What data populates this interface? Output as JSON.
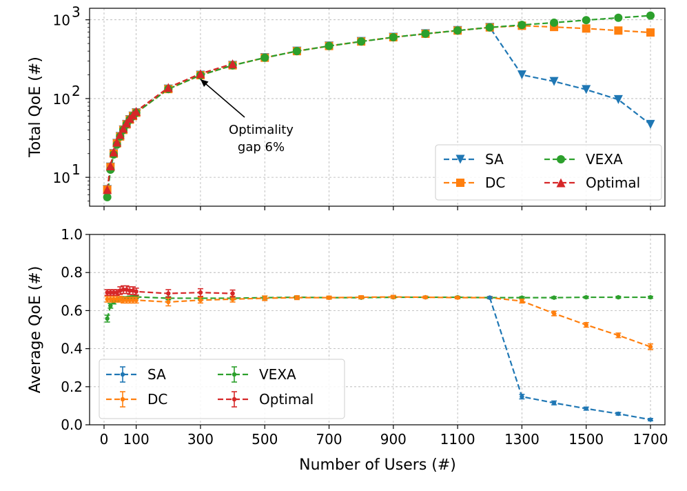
{
  "chart_data": [
    {
      "type": "line",
      "yscale": "log",
      "ylabel": "Total QoE (#)",
      "xlim": [
        -45,
        1745
      ],
      "ylim": [
        4.3,
        1400
      ],
      "grid": true,
      "legend": {
        "placement": "lower-right",
        "columns": 2
      },
      "yticks": [
        {
          "value": 10,
          "base": "10",
          "exp": "1"
        },
        {
          "value": 100,
          "base": "10",
          "exp": "2"
        },
        {
          "value": 1000,
          "base": "10",
          "exp": "3"
        }
      ],
      "series": [
        {
          "name": "SA",
          "color": "#1f77b4",
          "marker": "triangle-down",
          "x": [
            10,
            20,
            30,
            40,
            50,
            60,
            70,
            80,
            90,
            100,
            200,
            300,
            400,
            500,
            600,
            700,
            800,
            900,
            1000,
            1100,
            1200,
            1300,
            1400,
            1500,
            1600,
            1700
          ],
          "y": [
            7,
            13.5,
            20,
            27,
            33,
            40,
            47,
            54,
            60,
            66,
            132,
            198,
            264,
            330,
            400,
            465,
            530,
            600,
            665,
            730,
            800,
            200,
            165,
            130,
            97,
            47
          ]
        },
        {
          "name": "DC",
          "color": "#ff7f0e",
          "marker": "square",
          "x": [
            10,
            20,
            30,
            40,
            50,
            60,
            70,
            80,
            90,
            100,
            200,
            300,
            400,
            500,
            600,
            700,
            800,
            900,
            1000,
            1100,
            1200,
            1300,
            1400,
            1500,
            1600,
            1700
          ],
          "y": [
            7,
            13.5,
            20,
            27,
            33,
            40,
            47,
            54,
            60,
            66,
            132,
            198,
            264,
            330,
            400,
            465,
            530,
            600,
            665,
            730,
            800,
            840,
            810,
            775,
            730,
            690
          ]
        },
        {
          "name": "VEXA",
          "color": "#2ca02c",
          "marker": "circle",
          "x": [
            10,
            20,
            30,
            40,
            50,
            60,
            70,
            80,
            90,
            100,
            200,
            300,
            400,
            500,
            600,
            700,
            800,
            900,
            1000,
            1100,
            1200,
            1300,
            1400,
            1500,
            1600,
            1700
          ],
          "y": [
            5.6,
            12.5,
            19.5,
            26,
            33,
            40,
            47,
            54,
            60,
            66,
            132,
            198,
            264,
            330,
            400,
            465,
            530,
            600,
            665,
            730,
            800,
            860,
            920,
            990,
            1060,
            1130
          ]
        },
        {
          "name": "Optimal",
          "color": "#d62728",
          "marker": "triangle-up",
          "x": [
            10,
            20,
            30,
            40,
            50,
            60,
            70,
            80,
            90,
            100,
            200,
            300,
            400
          ],
          "y": [
            7,
            14,
            21,
            28,
            35,
            42,
            49,
            56,
            62,
            69,
            138,
            207,
            276
          ]
        }
      ],
      "annotation": {
        "lines": [
          "Optimality",
          "gap 6%"
        ],
        "x": 300,
        "y": 198
      }
    },
    {
      "type": "line",
      "ylabel": "Average QoE (#)",
      "xlabel": "Number of Users (#)",
      "xlim": [
        -45,
        1745
      ],
      "ylim": [
        0,
        1.0
      ],
      "grid": true,
      "legend": {
        "placement": "lower-left",
        "columns": 2
      },
      "yticks": [
        "0.0",
        "0.2",
        "0.4",
        "0.6",
        "0.8",
        "1.0"
      ],
      "xticks": [
        "0",
        "100",
        "300",
        "500",
        "700",
        "900",
        "1100",
        "1300",
        "1500",
        "1700"
      ],
      "series": [
        {
          "name": "SA",
          "color": "#1f77b4",
          "x": [
            1200,
            1300,
            1400,
            1500,
            1600,
            1700
          ],
          "y": [
            0.668,
            0.148,
            0.115,
            0.085,
            0.058,
            0.027
          ],
          "err": [
            0.005,
            0.012,
            0.01,
            0.008,
            0.007,
            0.006
          ]
        },
        {
          "name": "DC",
          "color": "#ff7f0e",
          "x": [
            10,
            20,
            30,
            40,
            50,
            60,
            70,
            80,
            90,
            100,
            200,
            300,
            400,
            500,
            600,
            700,
            800,
            900,
            1000,
            1100,
            1200,
            1300,
            1400,
            1500,
            1600,
            1700
          ],
          "y": [
            0.66,
            0.66,
            0.66,
            0.66,
            0.66,
            0.655,
            0.655,
            0.655,
            0.655,
            0.655,
            0.645,
            0.655,
            0.66,
            0.665,
            0.668,
            0.668,
            0.67,
            0.672,
            0.67,
            0.668,
            0.668,
            0.65,
            0.585,
            0.525,
            0.47,
            0.41
          ],
          "err": [
            0.015,
            0.015,
            0.015,
            0.015,
            0.015,
            0.015,
            0.015,
            0.015,
            0.015,
            0.015,
            0.02,
            0.015,
            0.015,
            0.012,
            0.01,
            0.008,
            0.008,
            0.008,
            0.006,
            0.006,
            0.006,
            0.01,
            0.012,
            0.012,
            0.012,
            0.015
          ]
        },
        {
          "name": "VEXA",
          "color": "#2ca02c",
          "x": [
            10,
            20,
            30,
            40,
            50,
            60,
            70,
            80,
            90,
            100,
            200,
            300,
            400,
            500,
            600,
            700,
            800,
            900,
            1000,
            1100,
            1200,
            1300,
            1400,
            1500,
            1600,
            1700
          ],
          "y": [
            0.558,
            0.625,
            0.645,
            0.655,
            0.66,
            0.665,
            0.665,
            0.668,
            0.67,
            0.672,
            0.665,
            0.665,
            0.665,
            0.668,
            0.67,
            0.668,
            0.668,
            0.67,
            0.67,
            0.67,
            0.668,
            0.668,
            0.668,
            0.67,
            0.67,
            0.67
          ],
          "err": [
            0.018,
            0.012,
            0.01,
            0.01,
            0.008,
            0.008,
            0.008,
            0.008,
            0.008,
            0.008,
            0.008,
            0.008,
            0.008,
            0.008,
            0.006,
            0.006,
            0.006,
            0.006,
            0.006,
            0.005,
            0.005,
            0.005,
            0.005,
            0.005,
            0.005,
            0.005
          ]
        },
        {
          "name": "Optimal",
          "color": "#d62728",
          "x": [
            10,
            20,
            30,
            40,
            50,
            60,
            70,
            80,
            90,
            100,
            200,
            300,
            400
          ],
          "y": [
            0.695,
            0.695,
            0.695,
            0.695,
            0.705,
            0.71,
            0.71,
            0.705,
            0.705,
            0.7,
            0.69,
            0.695,
            0.69
          ],
          "err": [
            0.015,
            0.015,
            0.015,
            0.015,
            0.02,
            0.02,
            0.02,
            0.02,
            0.02,
            0.018,
            0.02,
            0.02,
            0.018
          ]
        }
      ]
    }
  ]
}
